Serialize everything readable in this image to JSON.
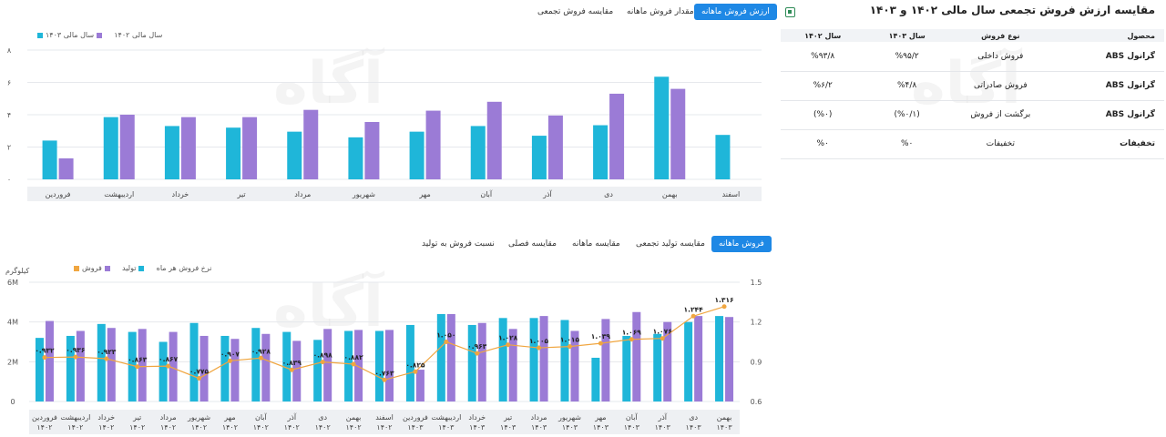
{
  "colors": {
    "accent": "#1e88e5",
    "cyan": "#1fb6d9",
    "purple": "#9b7bd6",
    "orange": "#f0a640"
  },
  "top_tabs": [
    {
      "label": "ارزش فروش ماهانه",
      "active": true
    },
    {
      "label": "مقدار فروش ماهانه",
      "active": false
    },
    {
      "label": "مقایسه فروش تجمعی",
      "active": false
    }
  ],
  "excel_icon": "excel-export-icon",
  "table_title": "مقایسه ارزش فروش تجمعی سال مالی ۱۴۰۲ و ۱۴۰۳",
  "table": {
    "headers": [
      "محصول",
      "نوع فروش",
      "سال ۱۴۰۳",
      "سال ۱۴۰۲"
    ],
    "rows": [
      [
        "گرانول ABS",
        "فروش داخلی",
        "%۹۵/۲",
        "%۹۳/۸"
      ],
      [
        "گرانول ABS",
        "فروش صادراتی",
        "%۴/۸",
        "%۶/۲"
      ],
      [
        "گرانول ABS",
        "برگشت از فروش",
        "(%۰/۱)",
        "(%۰)"
      ],
      [
        "تخفیفات",
        "تخفیفات",
        "%۰",
        "%۰"
      ]
    ]
  },
  "watermark": "آگاه",
  "chart1_legend": [
    "سال مالی ۱۴۰۳",
    "سال مالی ۱۴۰۲"
  ],
  "bottom_tabs": [
    {
      "label": "فروش ماهانه",
      "active": true
    },
    {
      "label": "مقایسه تولید تجمعی",
      "active": false
    },
    {
      "label": "مقایسه ماهانه",
      "active": false
    },
    {
      "label": "مقایسه فصلی",
      "active": false
    },
    {
      "label": "نسبت فروش به تولید",
      "active": false
    }
  ],
  "chart2_legend": [
    "فروش",
    "تولید",
    "نرخ فروش هر ماه"
  ],
  "chart2_unit": "کیلوگرم",
  "chart_data": [
    {
      "type": "bar",
      "categories": [
        "فروردین",
        "اردیبهشت",
        "خرداد",
        "تیر",
        "مرداد",
        "شهریور",
        "مهر",
        "آبان",
        "آذر",
        "دی",
        "بهمن",
        "اسفند"
      ],
      "series": [
        {
          "name": "سال مالی ۱۴۰۳",
          "color": "#9b7bd6",
          "values": [
            1.3,
            4.0,
            3.85,
            3.85,
            4.3,
            3.55,
            4.25,
            4.8,
            3.95,
            5.3,
            5.6,
            null
          ]
        },
        {
          "name": "سال مالی ۱۴۰۲",
          "color": "#1fb6d9",
          "values": [
            2.4,
            3.85,
            3.3,
            3.2,
            2.95,
            2.6,
            2.95,
            3.3,
            2.7,
            3.35,
            6.35,
            2.75
          ]
        }
      ],
      "yticks": [
        "۰",
        "۲",
        "۴",
        "۶",
        "۸"
      ],
      "ylim": [
        0,
        8
      ]
    },
    {
      "type": "bar+line",
      "categories": [
        [
          "فروردین",
          "۱۴۰۲"
        ],
        [
          "اردیبهشت",
          "۱۴۰۲"
        ],
        [
          "خرداد",
          "۱۴۰۲"
        ],
        [
          "تیر",
          "۱۴۰۲"
        ],
        [
          "مرداد",
          "۱۴۰۲"
        ],
        [
          "شهریور",
          "۱۴۰۲"
        ],
        [
          "مهر",
          "۱۴۰۲"
        ],
        [
          "آبان",
          "۱۴۰۲"
        ],
        [
          "آذر",
          "۱۴۰۲"
        ],
        [
          "دی",
          "۱۴۰۲"
        ],
        [
          "بهمن",
          "۱۴۰۲"
        ],
        [
          "اسفند",
          "۱۴۰۲"
        ],
        [
          "فروردین",
          "۱۴۰۳"
        ],
        [
          "اردیبهشت",
          "۱۴۰۳"
        ],
        [
          "خرداد",
          "۱۴۰۳"
        ],
        [
          "تیر",
          "۱۴۰۳"
        ],
        [
          "مرداد",
          "۱۴۰۳"
        ],
        [
          "شهریور",
          "۱۴۰۳"
        ],
        [
          "مهر",
          "۱۴۰۳"
        ],
        [
          "آبان",
          "۱۴۰۳"
        ],
        [
          "آذر",
          "۱۴۰۳"
        ],
        [
          "دی",
          "۱۴۰۳"
        ],
        [
          "بهمن",
          "۱۴۰۳"
        ]
      ],
      "series": [
        {
          "name": "تولید",
          "color": "#1fb6d9",
          "values": [
            3.2,
            3.3,
            3.9,
            3.5,
            3.0,
            3.95,
            3.3,
            3.7,
            3.5,
            3.1,
            3.55,
            3.55,
            3.85,
            4.4,
            3.85,
            4.2,
            4.2,
            4.1,
            2.2,
            3.3,
            3.4,
            4.0,
            4.3
          ]
        },
        {
          "name": "فروش",
          "color": "#9b7bd6",
          "values": [
            4.05,
            3.55,
            3.7,
            3.65,
            3.5,
            3.3,
            3.15,
            3.4,
            3.05,
            3.65,
            3.6,
            3.6,
            1.6,
            4.4,
            3.95,
            3.65,
            4.3,
            3.55,
            4.15,
            4.5,
            4.0,
            4.3,
            4.25
          ]
        },
        {
          "name": "نرخ فروش هر ماه",
          "color": "#f0a640",
          "values": [
            0.932,
            0.936,
            0.923,
            0.863,
            0.867,
            0.775,
            0.907,
            0.928,
            0.839,
            0.898,
            0.882,
            0.763,
            0.825,
            1.05,
            0.963,
            1.028,
            1.005,
            1.015,
            1.039,
            1.069,
            1.076,
            1.244,
            1.316
          ]
        }
      ],
      "labels": [
        "۰.۹۳۲",
        "۰.۹۳۶",
        "۰.۹۲۳",
        "۰.۸۶۳",
        "۰.۸۶۷",
        "۰.۷۷۵",
        "۰.۹۰۷",
        "۰.۹۲۸",
        "۰.۸۳۹",
        "۰.۸۹۸",
        "۰.۸۸۲",
        "۰.۷۶۳",
        "۰.۸۲۵",
        "۱.۰۵۰",
        "۰.۹۶۳",
        "۱.۰۲۸",
        "۱.۰۰۵",
        "۱.۰۱۵",
        "۱.۰۳۹",
        "۱.۰۶۹",
        "۱.۰۷۶",
        "۱.۲۴۴",
        "۱.۳۱۶"
      ],
      "yticks_left": [
        "0",
        "2M",
        "4M",
        "6M"
      ],
      "ylim_left": [
        0,
        6
      ],
      "yticks_right": [
        "0.6",
        "0.9",
        "1.2",
        "1.5"
      ],
      "ylim_right": [
        0.6,
        1.5
      ]
    }
  ]
}
